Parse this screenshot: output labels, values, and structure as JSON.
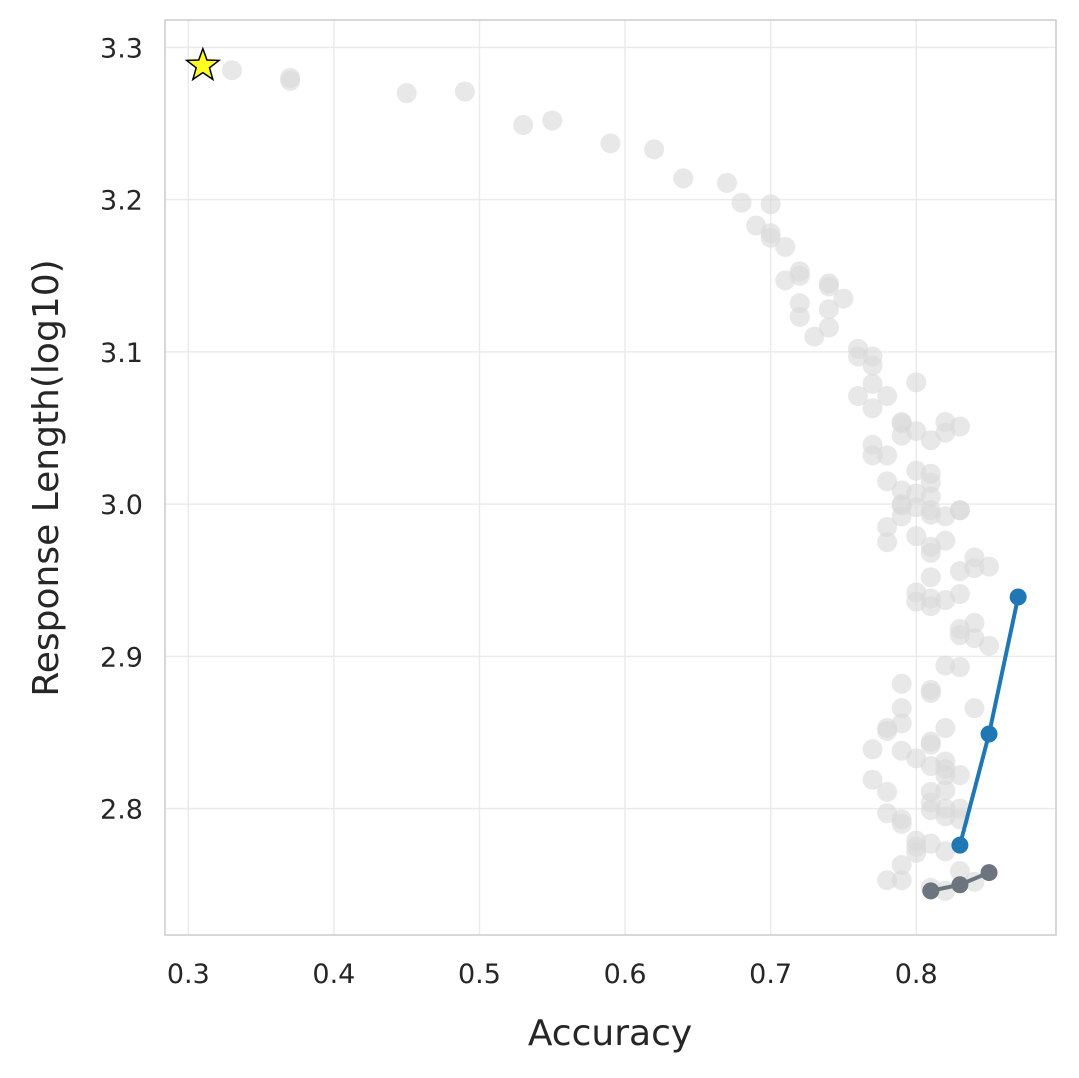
{
  "chart_data": {
    "type": "scatter",
    "title": "",
    "xlabel": "Accuracy",
    "ylabel": "Response Length(log10)",
    "xlim": [
      0.284,
      0.896
    ],
    "ylim": [
      2.717,
      3.318
    ],
    "xticks": [
      0.3,
      0.4,
      0.5,
      0.6,
      0.7,
      0.8
    ],
    "xtick_labels": [
      "0.3",
      "0.4",
      "0.5",
      "0.6",
      "0.7",
      "0.8"
    ],
    "yticks": [
      2.8,
      2.9,
      3.0,
      3.1,
      3.2,
      3.3
    ],
    "ytick_labels": [
      "2.8",
      "2.9",
      "3.0",
      "3.1",
      "3.2",
      "3.3"
    ],
    "grid": true,
    "legend": "none",
    "colors": {
      "background_points": "#d9d9d9",
      "blue_series": "#1f77b4",
      "gray_series": "#6c757d",
      "star": "#ffff22",
      "grid": "#ebebeb",
      "spine": "#cccccc",
      "text": "#262626"
    },
    "star_point": {
      "x": 0.31,
      "y": 3.288
    },
    "background_points": [
      [
        0.33,
        3.285
      ],
      [
        0.37,
        3.28
      ],
      [
        0.37,
        3.278
      ],
      [
        0.45,
        3.27
      ],
      [
        0.49,
        3.271
      ],
      [
        0.53,
        3.249
      ],
      [
        0.55,
        3.252
      ],
      [
        0.59,
        3.237
      ],
      [
        0.62,
        3.233
      ],
      [
        0.64,
        3.214
      ],
      [
        0.67,
        3.211
      ],
      [
        0.68,
        3.198
      ],
      [
        0.69,
        3.183
      ],
      [
        0.7,
        3.197
      ],
      [
        0.7,
        3.178
      ],
      [
        0.7,
        3.175
      ],
      [
        0.71,
        3.169
      ],
      [
        0.71,
        3.147
      ],
      [
        0.72,
        3.153
      ],
      [
        0.72,
        3.15
      ],
      [
        0.72,
        3.132
      ],
      [
        0.72,
        3.123
      ],
      [
        0.73,
        3.11
      ],
      [
        0.74,
        3.145
      ],
      [
        0.74,
        3.143
      ],
      [
        0.74,
        3.128
      ],
      [
        0.74,
        3.116
      ],
      [
        0.75,
        3.135
      ],
      [
        0.76,
        3.102
      ],
      [
        0.76,
        3.097
      ],
      [
        0.76,
        3.071
      ],
      [
        0.77,
        3.097
      ],
      [
        0.77,
        3.091
      ],
      [
        0.77,
        3.079
      ],
      [
        0.77,
        3.063
      ],
      [
        0.77,
        3.039
      ],
      [
        0.77,
        3.032
      ],
      [
        0.78,
        3.071
      ],
      [
        0.78,
        3.032
      ],
      [
        0.78,
        3.015
      ],
      [
        0.78,
        2.985
      ],
      [
        0.78,
        2.975
      ],
      [
        0.79,
        3.054
      ],
      [
        0.79,
        3.053
      ],
      [
        0.79,
        3.045
      ],
      [
        0.79,
        3.009
      ],
      [
        0.79,
        3.0
      ],
      [
        0.79,
        2.999
      ],
      [
        0.79,
        2.992
      ],
      [
        0.8,
        3.08
      ],
      [
        0.8,
        3.048
      ],
      [
        0.8,
        3.022
      ],
      [
        0.8,
        3.007
      ],
      [
        0.8,
        2.998
      ],
      [
        0.8,
        2.979
      ],
      [
        0.8,
        2.942
      ],
      [
        0.8,
        2.936
      ],
      [
        0.81,
        3.042
      ],
      [
        0.81,
        3.02
      ],
      [
        0.81,
        3.014
      ],
      [
        0.81,
        3.005
      ],
      [
        0.81,
        2.996
      ],
      [
        0.81,
        2.993
      ],
      [
        0.81,
        2.972
      ],
      [
        0.81,
        2.968
      ],
      [
        0.81,
        2.952
      ],
      [
        0.81,
        2.938
      ],
      [
        0.81,
        2.933
      ],
      [
        0.82,
        3.054
      ],
      [
        0.82,
        3.047
      ],
      [
        0.82,
        2.992
      ],
      [
        0.82,
        2.976
      ],
      [
        0.82,
        2.937
      ],
      [
        0.83,
        3.051
      ],
      [
        0.83,
        2.996
      ],
      [
        0.83,
        2.996
      ],
      [
        0.83,
        2.956
      ],
      [
        0.83,
        2.941
      ],
      [
        0.84,
        2.965
      ],
      [
        0.84,
        2.958
      ],
      [
        0.85,
        2.959
      ],
      [
        0.79,
        2.882
      ],
      [
        0.79,
        2.866
      ],
      [
        0.79,
        2.856
      ],
      [
        0.78,
        2.851
      ],
      [
        0.78,
        2.853
      ],
      [
        0.77,
        2.839
      ],
      [
        0.79,
        2.838
      ],
      [
        0.8,
        2.833
      ],
      [
        0.81,
        2.878
      ],
      [
        0.81,
        2.876
      ],
      [
        0.81,
        2.844
      ],
      [
        0.81,
        2.842
      ],
      [
        0.81,
        2.828
      ],
      [
        0.82,
        2.894
      ],
      [
        0.82,
        2.853
      ],
      [
        0.82,
        2.831
      ],
      [
        0.82,
        2.826
      ],
      [
        0.82,
        2.822
      ],
      [
        0.82,
        2.812
      ],
      [
        0.83,
        2.918
      ],
      [
        0.83,
        2.914
      ],
      [
        0.83,
        2.893
      ],
      [
        0.83,
        2.822
      ],
      [
        0.84,
        2.922
      ],
      [
        0.84,
        2.912
      ],
      [
        0.84,
        2.866
      ],
      [
        0.85,
        2.907
      ],
      [
        0.77,
        2.819
      ],
      [
        0.78,
        2.811
      ],
      [
        0.78,
        2.797
      ],
      [
        0.79,
        2.793
      ],
      [
        0.79,
        2.79
      ],
      [
        0.81,
        2.811
      ],
      [
        0.81,
        2.799
      ],
      [
        0.81,
        2.804
      ],
      [
        0.82,
        2.8
      ],
      [
        0.82,
        2.795
      ],
      [
        0.83,
        2.8
      ],
      [
        0.83,
        2.793
      ],
      [
        0.8,
        2.779
      ],
      [
        0.8,
        2.775
      ],
      [
        0.8,
        2.771
      ],
      [
        0.81,
        2.777
      ],
      [
        0.82,
        2.772
      ],
      [
        0.79,
        2.763
      ],
      [
        0.78,
        2.753
      ],
      [
        0.79,
        2.753
      ],
      [
        0.83,
        2.759
      ],
      [
        0.81,
        2.748
      ],
      [
        0.82,
        2.746
      ],
      [
        0.84,
        2.752
      ]
    ],
    "series": [
      {
        "color": "#1f77b4",
        "x": [
          0.83,
          0.85,
          0.87
        ],
        "y": [
          2.776,
          2.849,
          2.939
        ]
      },
      {
        "color": "#6c757d",
        "x": [
          0.81,
          0.83,
          0.85
        ],
        "y": [
          2.746,
          2.75,
          2.758
        ]
      }
    ]
  }
}
